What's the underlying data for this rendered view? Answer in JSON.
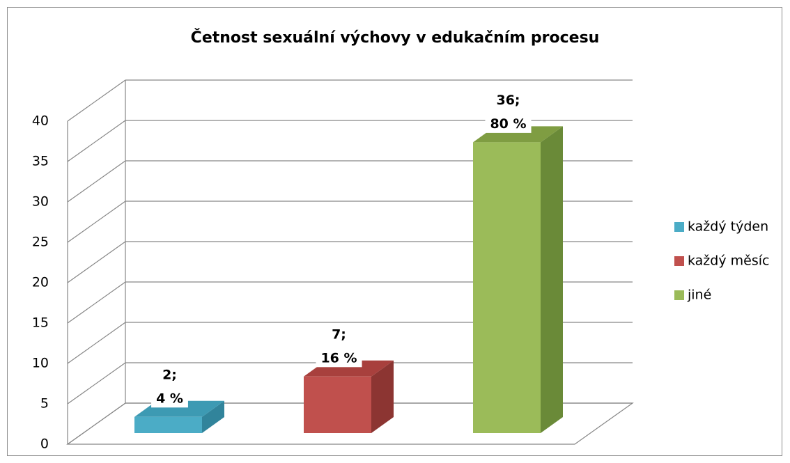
{
  "chart_data": {
    "type": "bar3d",
    "title": "Četnost sexuální výchovy v edukačním procesu",
    "series": [
      {
        "name": "každý týden",
        "color": "#4bacc6",
        "side_color": "#31849b",
        "top_color": "#3d9ab3",
        "values": [
          2
        ],
        "value_labels": [
          "2;"
        ],
        "share_labels": [
          "4 %"
        ]
      },
      {
        "name": "každý měsíc",
        "color": "#c0504d",
        "side_color": "#8c3532",
        "top_color": "#a8403d",
        "values": [
          7
        ],
        "value_labels": [
          "7;"
        ],
        "share_labels": [
          "16 %"
        ]
      },
      {
        "name": "jiné",
        "color": "#9bbb59",
        "side_color": "#6a8a38",
        "top_color": "#7f9d42",
        "values": [
          36
        ],
        "value_labels": [
          "36;"
        ],
        "share_labels": [
          "80 %"
        ]
      }
    ],
    "ylim": [
      0,
      40
    ],
    "yticks": [
      0,
      5,
      10,
      15,
      20,
      25,
      30,
      35,
      40
    ],
    "grid": true,
    "legend": "right"
  }
}
